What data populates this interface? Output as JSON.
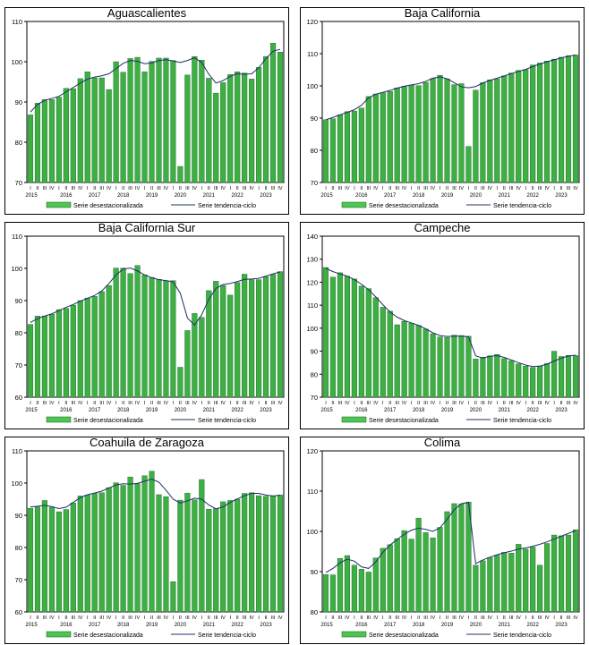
{
  "legend": {
    "bar_label": "Serie desestacionalizada",
    "line_label": "Serie tendencia-ciclo"
  },
  "colors": {
    "bar_fill": "#3cb043",
    "bar_stroke": "#1f5f22",
    "line": "#1f2f6b",
    "legend_bar": "#4cc552"
  },
  "quarter_labels": [
    "I",
    "II",
    "III",
    "IV"
  ],
  "years": [
    "2015",
    "2016",
    "2017",
    "2018",
    "2019",
    "2020",
    "2021",
    "2022",
    "2023"
  ],
  "chart_data": [
    {
      "type": "bar",
      "title": "Aguascalientes",
      "ylim": [
        70,
        110
      ],
      "yticks": [
        70,
        80,
        90,
        100,
        110
      ],
      "series": [
        {
          "name": "Serie desestacionalizada",
          "type": "bar",
          "values": [
            86.8,
            89.7,
            90.6,
            90.6,
            91.2,
            93.4,
            93.3,
            95.8,
            97.5,
            96.0,
            96.0,
            93.1,
            100.0,
            97.4,
            100.8,
            101.1,
            97.5,
            100.1,
            100.9,
            100.9,
            100.3,
            74.0,
            96.7,
            101.3,
            100.4,
            95.9,
            92.2,
            94.8,
            96.8,
            97.5,
            97.2,
            95.7,
            98.6,
            101.3,
            104.6,
            102.4
          ]
        },
        {
          "name": "Serie tendencia-ciclo",
          "type": "line",
          "values": [
            87.5,
            89.4,
            90.4,
            90.9,
            91.4,
            92.5,
            93.6,
            94.7,
            95.7,
            96.2,
            96.5,
            97.0,
            98.3,
            99.6,
            100.3,
            100.1,
            99.5,
            99.7,
            100.3,
            100.5,
            100.2,
            99.8,
            100.3,
            101.0,
            99.8,
            96.9,
            94.7,
            95.3,
            96.4,
            97.0,
            96.9,
            97.0,
            98.5,
            100.8,
            102.6,
            103.1
          ]
        }
      ]
    },
    {
      "type": "bar",
      "title": "Baja California",
      "ylim": [
        70,
        120
      ],
      "yticks": [
        70,
        80,
        90,
        100,
        110,
        120
      ],
      "series": [
        {
          "name": "Serie desestacionalizada",
          "type": "bar",
          "values": [
            89.5,
            89.8,
            91.0,
            92.0,
            92.2,
            93.1,
            96.7,
            97.5,
            97.9,
            98.3,
            99.4,
            99.9,
            100.2,
            100.1,
            101.1,
            102.3,
            103.3,
            102.2,
            100.4,
            100.7,
            81.2,
            98.7,
            101.0,
            101.9,
            102.2,
            103.1,
            104.0,
            104.8,
            105.1,
            106.5,
            107.1,
            107.7,
            108.3,
            108.9,
            109.4,
            109.6
          ]
        },
        {
          "name": "Serie tendencia-ciclo",
          "type": "line",
          "values": [
            89.5,
            90.2,
            91.0,
            91.8,
            92.6,
            94.0,
            96.3,
            97.4,
            98.0,
            98.6,
            99.3,
            99.9,
            100.3,
            100.7,
            101.4,
            102.4,
            102.8,
            102.2,
            101.0,
            99.7,
            99.4,
            99.8,
            100.9,
            101.7,
            102.4,
            103.1,
            103.8,
            104.5,
            105.1,
            106.0,
            106.8,
            107.5,
            108.1,
            108.7,
            109.2,
            109.6
          ]
        }
      ]
    },
    {
      "type": "bar",
      "title": "Baja California Sur",
      "ylim": [
        60,
        110
      ],
      "yticks": [
        60,
        70,
        80,
        90,
        100,
        110
      ],
      "series": [
        {
          "name": "Serie desestacionalizada",
          "type": "bar",
          "values": [
            82.6,
            85.2,
            85.2,
            85.8,
            87.2,
            87.6,
            88.6,
            90.0,
            90.8,
            91.3,
            92.8,
            94.7,
            100.1,
            100.1,
            98.4,
            100.9,
            98.0,
            97.2,
            96.6,
            96.2,
            96.2,
            69.3,
            80.7,
            86.0,
            84.8,
            93.1,
            96.0,
            94.7,
            91.7,
            95.6,
            98.2,
            96.5,
            96.5,
            97.4,
            98.1,
            99.0
          ]
        },
        {
          "name": "Serie tendencia-ciclo",
          "type": "line",
          "values": [
            83.2,
            84.4,
            85.2,
            85.9,
            86.9,
            87.9,
            88.8,
            89.8,
            90.7,
            91.6,
            93.0,
            95.3,
            98.0,
            99.8,
            100.1,
            99.2,
            98.0,
            97.1,
            96.5,
            96.2,
            95.8,
            92.3,
            84.6,
            82.4,
            85.6,
            90.4,
            93.8,
            95.0,
            95.3,
            95.9,
            96.6,
            96.7,
            96.9,
            97.6,
            98.3,
            98.9
          ]
        }
      ]
    },
    {
      "type": "bar",
      "title": "Campeche",
      "ylim": [
        70,
        140
      ],
      "yticks": [
        70,
        80,
        90,
        100,
        110,
        120,
        130,
        140
      ],
      "series": [
        {
          "name": "Serie desestacionalizada",
          "type": "bar",
          "values": [
            126.4,
            122.2,
            124.1,
            122.6,
            121.4,
            118.3,
            117.2,
            113.3,
            109.1,
            107.4,
            101.5,
            103.0,
            102.2,
            101.2,
            99.6,
            97.6,
            96.2,
            96.0,
            97.0,
            96.8,
            96.5,
            86.6,
            87.4,
            88.0,
            88.6,
            86.8,
            85.9,
            84.5,
            83.5,
            82.9,
            83.6,
            84.6,
            90.0,
            87.7,
            88.2,
            88.1
          ]
        },
        {
          "name": "Serie tendencia-ciclo",
          "type": "line",
          "values": [
            126.0,
            124.6,
            123.6,
            122.6,
            121.1,
            119.1,
            116.7,
            113.6,
            110.2,
            107.0,
            104.8,
            103.3,
            102.3,
            101.2,
            99.7,
            98.0,
            96.8,
            96.4,
            96.5,
            96.6,
            96.2,
            88.0,
            87.0,
            87.8,
            88.1,
            87.3,
            86.2,
            85.0,
            84.0,
            83.3,
            83.5,
            84.4,
            85.7,
            87.0,
            87.9,
            88.3
          ]
        }
      ]
    },
    {
      "type": "bar",
      "title": "Coahuila de Zaragoza",
      "ylim": [
        60,
        110
      ],
      "yticks": [
        60,
        70,
        80,
        90,
        100,
        110
      ],
      "series": [
        {
          "name": "Serie desestacionalizada",
          "type": "bar",
          "values": [
            92.2,
            92.6,
            94.6,
            92.5,
            91.1,
            91.8,
            93.8,
            96.0,
            96.3,
            96.8,
            97.0,
            98.6,
            100.1,
            99.3,
            101.9,
            99.8,
            102.3,
            103.7,
            96.4,
            95.8,
            69.4,
            94.7,
            96.9,
            94.8,
            101.1,
            91.9,
            92.1,
            94.2,
            94.6,
            95.0,
            96.8,
            97.0,
            96.1,
            95.9,
            95.9,
            96.3
          ]
        },
        {
          "name": "Serie tendencia-ciclo",
          "type": "line",
          "values": [
            92.6,
            92.8,
            93.1,
            92.7,
            92.1,
            92.5,
            94.0,
            95.5,
            96.4,
            96.9,
            97.5,
            98.5,
            99.4,
            99.8,
            99.7,
            99.9,
            100.6,
            101.2,
            100.3,
            97.8,
            95.0,
            93.8,
            94.5,
            95.3,
            95.0,
            93.2,
            92.0,
            92.6,
            94.0,
            95.1,
            96.1,
            96.8,
            96.8,
            96.3,
            96.0,
            96.2
          ]
        }
      ]
    },
    {
      "type": "bar",
      "title": "Colima",
      "ylim": [
        80,
        120
      ],
      "yticks": [
        80,
        90,
        100,
        110,
        120
      ],
      "series": [
        {
          "name": "Serie desestacionalizada",
          "type": "bar",
          "values": [
            89.3,
            89.2,
            93.3,
            94.0,
            91.6,
            90.6,
            89.9,
            93.4,
            95.8,
            96.7,
            98.2,
            100.2,
            98.1,
            103.3,
            99.7,
            98.4,
            101.0,
            104.9,
            106.9,
            106.8,
            107.3,
            91.6,
            92.7,
            93.5,
            94.1,
            94.8,
            94.6,
            96.8,
            95.6,
            96.1,
            91.6,
            97.0,
            99.1,
            98.9,
            99.1,
            100.4
          ]
        },
        {
          "name": "Serie tendencia-ciclo",
          "type": "line",
          "values": [
            89.8,
            90.8,
            92.2,
            93.1,
            92.6,
            91.2,
            90.8,
            92.4,
            94.8,
            96.6,
            98.0,
            99.3,
            100.3,
            100.8,
            100.5,
            100.0,
            100.9,
            103.0,
            105.4,
            106.9,
            107.2,
            92.0,
            92.9,
            93.6,
            94.2,
            94.7,
            95.1,
            95.6,
            95.9,
            96.3,
            96.8,
            97.4,
            98.1,
            98.8,
            99.5,
            100.2
          ]
        }
      ]
    }
  ]
}
